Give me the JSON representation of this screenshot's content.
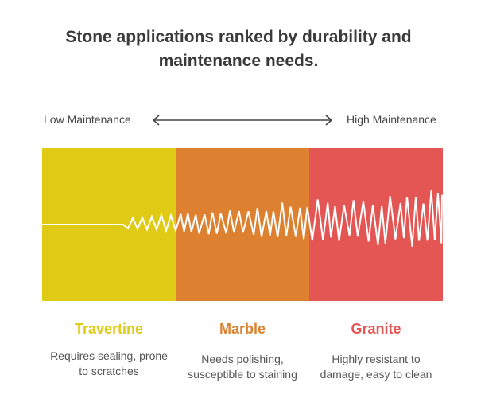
{
  "title_lines": [
    "Stone applications ranked by durability and",
    "maintenance needs."
  ],
  "scale": {
    "low_label": "Low Maintenance",
    "high_label": "High Maintenance"
  },
  "stages": [
    {
      "name": "Travertine",
      "description": "Requires sealing, prone to scratches",
      "color": "#DFCB16"
    },
    {
      "name": "Marble",
      "description": "Needs polishing, susceptible to staining",
      "color": "#DD8130"
    },
    {
      "name": "Granite",
      "description": "Highly resistant to damage, easy to clean",
      "color": "#E45653"
    }
  ],
  "icons": {
    "arrow": "double-headed-arrow-icon",
    "wave": "vibration-wave-icon"
  }
}
